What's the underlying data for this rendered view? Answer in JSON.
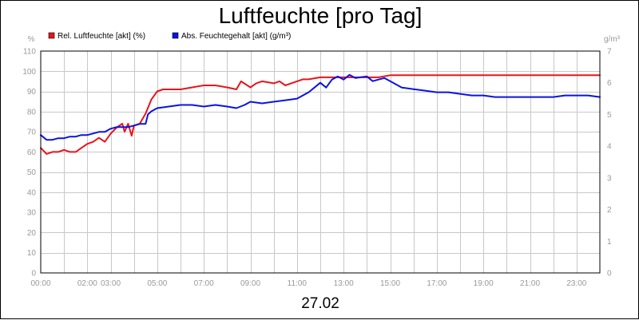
{
  "chart_data": {
    "type": "line",
    "title": "Luftfeuchte [pro Tag]",
    "date_label": "27.02",
    "y_left": {
      "unit": "%",
      "lim": [
        0,
        110
      ],
      "ticks": [
        "0",
        "10",
        "20",
        "30",
        "40",
        "50",
        "60",
        "70",
        "80",
        "90",
        "100",
        "110"
      ]
    },
    "y_right": {
      "unit": "g/m³",
      "lim": [
        0,
        7
      ],
      "ticks": [
        "0",
        "1",
        "2",
        "3",
        "4",
        "5",
        "6",
        "7"
      ]
    },
    "x": {
      "lim_hours": [
        0,
        24
      ],
      "tick_labels": [
        {
          "h": 0,
          "label": "00:00"
        },
        {
          "h": 2,
          "label": "02:00"
        },
        {
          "h": 3,
          "label": "03:00"
        },
        {
          "h": 5,
          "label": "05:00"
        },
        {
          "h": 7,
          "label": "07:00"
        },
        {
          "h": 9,
          "label": "09:00"
        },
        {
          "h": 11,
          "label": "11:00"
        },
        {
          "h": 13,
          "label": "13:00"
        },
        {
          "h": 15,
          "label": "15:00"
        },
        {
          "h": 17,
          "label": "17:00"
        },
        {
          "h": 19,
          "label": "19:00"
        },
        {
          "h": 21,
          "label": "21:00"
        },
        {
          "h": 23,
          "label": "23:00"
        }
      ]
    },
    "grid": true,
    "legend_position": "top-left",
    "series": [
      {
        "name": "Rel. Luftfeuchte [akt] (%)",
        "color": "#e8141c",
        "axis": "left",
        "points": [
          [
            0.0,
            62
          ],
          [
            0.25,
            59
          ],
          [
            0.5,
            60
          ],
          [
            0.75,
            60
          ],
          [
            1.0,
            61
          ],
          [
            1.25,
            60
          ],
          [
            1.5,
            60
          ],
          [
            1.75,
            62
          ],
          [
            2.0,
            64
          ],
          [
            2.25,
            65
          ],
          [
            2.5,
            67
          ],
          [
            2.75,
            65
          ],
          [
            3.0,
            69
          ],
          [
            3.25,
            72
          ],
          [
            3.5,
            74
          ],
          [
            3.6,
            70
          ],
          [
            3.75,
            74
          ],
          [
            3.9,
            68
          ],
          [
            4.0,
            73
          ],
          [
            4.25,
            74
          ],
          [
            4.5,
            79
          ],
          [
            4.75,
            86
          ],
          [
            5.0,
            90
          ],
          [
            5.25,
            91
          ],
          [
            5.5,
            91
          ],
          [
            5.75,
            91
          ],
          [
            6.0,
            91
          ],
          [
            6.5,
            92
          ],
          [
            7.0,
            93
          ],
          [
            7.5,
            93
          ],
          [
            8.0,
            92
          ],
          [
            8.4,
            91
          ],
          [
            8.6,
            95
          ],
          [
            9.0,
            92
          ],
          [
            9.25,
            94
          ],
          [
            9.5,
            95
          ],
          [
            10.0,
            94
          ],
          [
            10.25,
            95
          ],
          [
            10.5,
            93
          ],
          [
            10.75,
            94
          ],
          [
            11.0,
            95
          ],
          [
            11.25,
            96
          ],
          [
            11.5,
            96
          ],
          [
            12.0,
            97
          ],
          [
            12.5,
            97
          ],
          [
            13.0,
            97
          ],
          [
            13.5,
            97
          ],
          [
            14.0,
            97
          ],
          [
            14.5,
            97
          ],
          [
            15.0,
            98
          ],
          [
            15.5,
            98
          ],
          [
            16.0,
            98
          ],
          [
            17.0,
            98
          ],
          [
            18.0,
            98
          ],
          [
            19.0,
            98
          ],
          [
            20.0,
            98
          ],
          [
            21.0,
            98
          ],
          [
            22.0,
            98
          ],
          [
            23.0,
            98
          ],
          [
            24.0,
            98
          ]
        ]
      },
      {
        "name": "Abs. Feuchtegehalt [akt] (g/m³)",
        "color": "#0a14e0",
        "axis": "right",
        "points": [
          [
            0.0,
            4.35
          ],
          [
            0.25,
            4.2
          ],
          [
            0.5,
            4.2
          ],
          [
            0.75,
            4.25
          ],
          [
            1.0,
            4.25
          ],
          [
            1.25,
            4.3
          ],
          [
            1.5,
            4.3
          ],
          [
            1.75,
            4.35
          ],
          [
            2.0,
            4.35
          ],
          [
            2.25,
            4.4
          ],
          [
            2.5,
            4.45
          ],
          [
            2.75,
            4.45
          ],
          [
            3.0,
            4.55
          ],
          [
            3.25,
            4.6
          ],
          [
            3.5,
            4.6
          ],
          [
            3.75,
            4.6
          ],
          [
            4.0,
            4.65
          ],
          [
            4.25,
            4.7
          ],
          [
            4.5,
            4.7
          ],
          [
            4.6,
            5.0
          ],
          [
            4.75,
            5.1
          ],
          [
            5.0,
            5.2
          ],
          [
            5.5,
            5.25
          ],
          [
            6.0,
            5.3
          ],
          [
            6.5,
            5.3
          ],
          [
            7.0,
            5.25
          ],
          [
            7.5,
            5.3
          ],
          [
            8.0,
            5.25
          ],
          [
            8.4,
            5.2
          ],
          [
            8.75,
            5.3
          ],
          [
            9.0,
            5.4
          ],
          [
            9.5,
            5.35
          ],
          [
            10.0,
            5.4
          ],
          [
            10.5,
            5.45
          ],
          [
            11.0,
            5.5
          ],
          [
            11.25,
            5.6
          ],
          [
            11.5,
            5.7
          ],
          [
            11.75,
            5.85
          ],
          [
            12.0,
            6.0
          ],
          [
            12.25,
            5.85
          ],
          [
            12.5,
            6.1
          ],
          [
            12.75,
            6.2
          ],
          [
            13.0,
            6.1
          ],
          [
            13.25,
            6.25
          ],
          [
            13.5,
            6.15
          ],
          [
            14.0,
            6.2
          ],
          [
            14.25,
            6.05
          ],
          [
            14.5,
            6.1
          ],
          [
            14.75,
            6.15
          ],
          [
            15.0,
            6.05
          ],
          [
            15.5,
            5.85
          ],
          [
            16.0,
            5.8
          ],
          [
            16.5,
            5.75
          ],
          [
            17.0,
            5.7
          ],
          [
            17.5,
            5.7
          ],
          [
            18.0,
            5.65
          ],
          [
            18.5,
            5.6
          ],
          [
            19.0,
            5.6
          ],
          [
            19.5,
            5.55
          ],
          [
            20.0,
            5.55
          ],
          [
            20.5,
            5.55
          ],
          [
            21.0,
            5.55
          ],
          [
            21.5,
            5.55
          ],
          [
            22.0,
            5.55
          ],
          [
            22.5,
            5.6
          ],
          [
            23.0,
            5.6
          ],
          [
            23.5,
            5.6
          ],
          [
            24.0,
            5.55
          ]
        ]
      }
    ]
  }
}
